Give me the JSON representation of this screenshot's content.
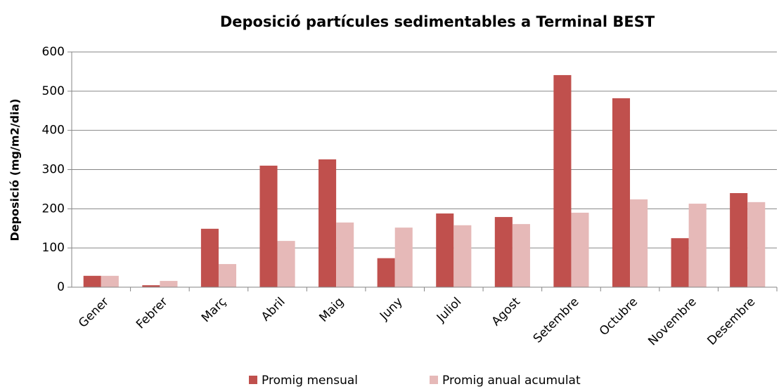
{
  "chart_data": {
    "type": "bar",
    "title": "Deposició partícules sedimentables a Terminal BEST",
    "y_label": "Deposició (mg/m2/dia)",
    "categories": [
      "Gener",
      "Febrer",
      "Març",
      "Abril",
      "Maig",
      "Juny",
      "Juliol",
      "Agost",
      "Setembre",
      "Octubre",
      "Novembre",
      "Desembre"
    ],
    "series": [
      {
        "name": "Promig mensual",
        "color": "#c0504d",
        "values": [
          29,
          5,
          149,
          310,
          326,
          74,
          188,
          179,
          541,
          482,
          125,
          240
        ]
      },
      {
        "name": "Promig anual acumulat",
        "color": "#e6b9b8",
        "values": [
          29,
          16,
          59,
          118,
          165,
          152,
          158,
          161,
          190,
          224,
          213,
          217
        ]
      }
    ],
    "ylim": [
      0,
      600
    ],
    "yticks": [
      0,
      100,
      200,
      300,
      400,
      500,
      600
    ],
    "grid": true,
    "legend": "bottom"
  }
}
